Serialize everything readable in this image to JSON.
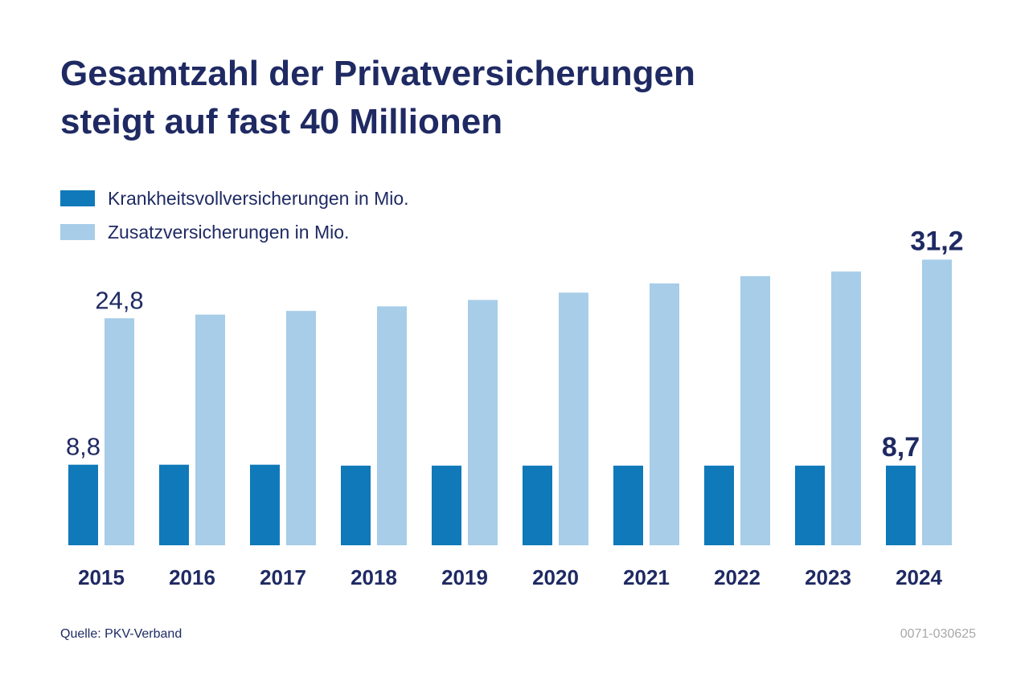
{
  "title_line1": "Gesamtzahl der Privatversicherungen",
  "title_line2": "steigt auf fast 40 Millionen",
  "colors": {
    "title": "#1f2a63",
    "series1": "#0f79b9",
    "series2": "#a7cde8",
    "background": "#ffffff"
  },
  "legend": [
    {
      "label": "Krankheitsvollversicherungen in Mio.",
      "color": "#0f79b9"
    },
    {
      "label": "Zusatzversicherungen in Mio.",
      "color": "#a7cde8"
    }
  ],
  "source": "Quelle: PKV-Verband",
  "code": "0071-030625",
  "chart_data": {
    "type": "bar",
    "title": "Gesamtzahl der Privatversicherungen steigt auf fast 40 Millionen",
    "xlabel": "",
    "ylabel": "",
    "ylim": [
      0,
      32
    ],
    "grid": false,
    "categories": [
      "2015",
      "2016",
      "2017",
      "2018",
      "2019",
      "2020",
      "2021",
      "2022",
      "2023",
      "2024"
    ],
    "series": [
      {
        "name": "Krankheitsvollversicherungen in Mio.",
        "values": [
          8.8,
          8.8,
          8.8,
          8.7,
          8.7,
          8.7,
          8.7,
          8.7,
          8.7,
          8.7
        ]
      },
      {
        "name": "Zusatzversicherungen in Mio.",
        "values": [
          24.8,
          25.2,
          25.6,
          26.1,
          26.8,
          27.6,
          28.6,
          29.4,
          29.9,
          31.2
        ]
      }
    ],
    "data_labels": [
      {
        "series": 0,
        "index": 0,
        "text": "8,8",
        "emphasis": false
      },
      {
        "series": 1,
        "index": 0,
        "text": "24,8",
        "emphasis": false
      },
      {
        "series": 0,
        "index": 9,
        "text": "8,7",
        "emphasis": true
      },
      {
        "series": 1,
        "index": 9,
        "text": "31,2",
        "emphasis": true
      }
    ]
  }
}
